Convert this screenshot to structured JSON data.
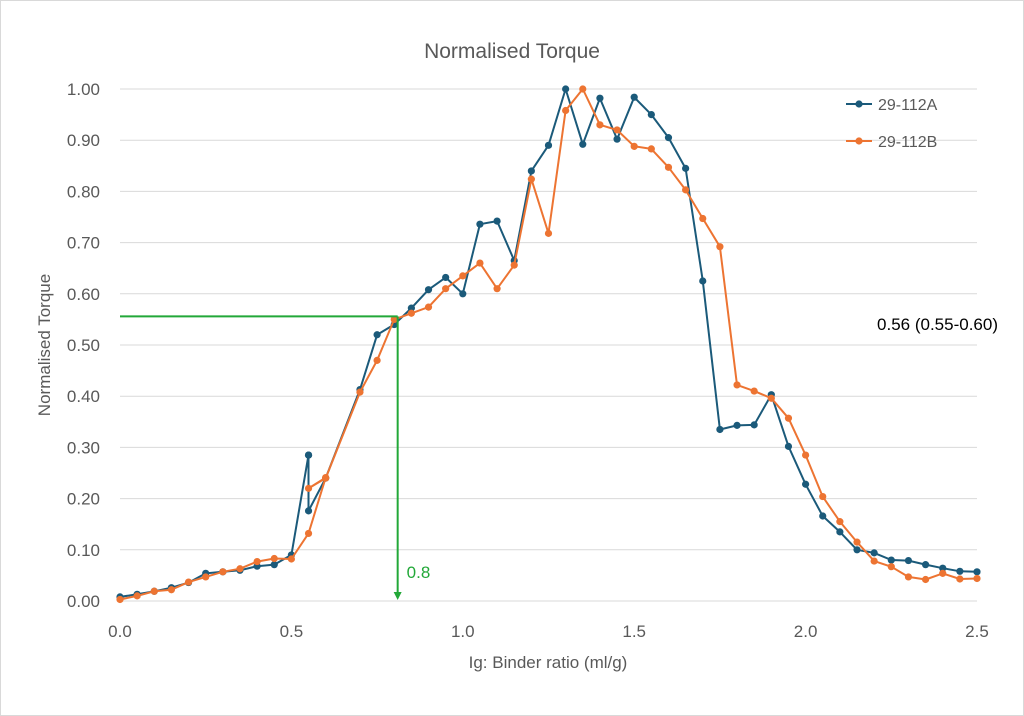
{
  "chart_data": {
    "type": "line",
    "title": "Normalised Torque",
    "xlabel": "Ig: Binder ratio (ml/g)",
    "ylabel": "Normalised Torque",
    "xlim": [
      0,
      2.5
    ],
    "ylim": [
      0,
      1.0
    ],
    "x_ticks": [
      "0.0",
      "0.5",
      "1.0",
      "1.5",
      "2.0",
      "2.5"
    ],
    "y_ticks": [
      "0.00",
      "0.10",
      "0.20",
      "0.30",
      "0.40",
      "0.50",
      "0.60",
      "0.70",
      "0.80",
      "0.90",
      "1.00"
    ],
    "grid": "horizontal",
    "legend_position": "top-right",
    "series": [
      {
        "name": "29-112A",
        "color": "#1b5a7a",
        "points": [
          [
            0.0,
            0.008
          ],
          [
            0.05,
            0.013
          ],
          [
            0.1,
            0.019
          ],
          [
            0.15,
            0.026
          ],
          [
            0.2,
            0.036
          ],
          [
            0.25,
            0.054
          ],
          [
            0.3,
            0.057
          ],
          [
            0.35,
            0.06
          ],
          [
            0.4,
            0.068
          ],
          [
            0.45,
            0.071
          ],
          [
            0.5,
            0.09
          ],
          [
            0.55,
            0.285
          ],
          [
            0.55,
            0.285
          ],
          [
            0.55,
            0.176
          ],
          [
            0.6,
            0.24
          ],
          [
            0.7,
            0.413
          ],
          [
            0.75,
            0.52
          ],
          [
            0.8,
            0.54
          ],
          [
            0.85,
            0.572
          ],
          [
            0.9,
            0.608
          ],
          [
            0.95,
            0.632
          ],
          [
            1.0,
            0.6
          ],
          [
            1.05,
            0.736
          ],
          [
            1.1,
            0.742
          ],
          [
            1.15,
            0.665
          ],
          [
            1.2,
            0.84
          ],
          [
            1.25,
            0.89
          ],
          [
            1.3,
            1.0
          ],
          [
            1.35,
            0.892
          ],
          [
            1.4,
            0.982
          ],
          [
            1.45,
            0.902
          ],
          [
            1.5,
            0.984
          ],
          [
            1.55,
            0.95
          ],
          [
            1.6,
            0.905
          ],
          [
            1.65,
            0.845
          ],
          [
            1.7,
            0.625
          ],
          [
            1.75,
            0.335
          ],
          [
            1.8,
            0.343
          ],
          [
            1.85,
            0.344
          ],
          [
            1.9,
            0.403
          ],
          [
            1.95,
            0.302
          ],
          [
            2.0,
            0.228
          ],
          [
            2.05,
            0.166
          ],
          [
            2.1,
            0.135
          ],
          [
            2.15,
            0.1
          ],
          [
            2.2,
            0.094
          ],
          [
            2.25,
            0.08
          ],
          [
            2.3,
            0.079
          ],
          [
            2.35,
            0.071
          ],
          [
            2.4,
            0.064
          ],
          [
            2.45,
            0.058
          ],
          [
            2.5,
            0.057
          ]
        ]
      },
      {
        "name": "29-112B",
        "color": "#ed7432",
        "points": [
          [
            0.0,
            0.003
          ],
          [
            0.05,
            0.01
          ],
          [
            0.1,
            0.019
          ],
          [
            0.15,
            0.022
          ],
          [
            0.2,
            0.037
          ],
          [
            0.25,
            0.047
          ],
          [
            0.3,
            0.057
          ],
          [
            0.35,
            0.063
          ],
          [
            0.4,
            0.077
          ],
          [
            0.45,
            0.083
          ],
          [
            0.5,
            0.082
          ],
          [
            0.55,
            0.132
          ],
          [
            0.6,
            0.241
          ],
          [
            0.55,
            0.22
          ],
          [
            0.6,
            0.24
          ],
          [
            0.7,
            0.408
          ],
          [
            0.75,
            0.47
          ],
          [
            0.8,
            0.55
          ],
          [
            0.85,
            0.562
          ],
          [
            0.9,
            0.574
          ],
          [
            0.95,
            0.61
          ],
          [
            1.0,
            0.635
          ],
          [
            1.05,
            0.66
          ],
          [
            1.1,
            0.61
          ],
          [
            1.15,
            0.656
          ],
          [
            1.2,
            0.824
          ],
          [
            1.25,
            0.718
          ],
          [
            1.3,
            0.958
          ],
          [
            1.35,
            1.0
          ],
          [
            1.4,
            0.93
          ],
          [
            1.45,
            0.92
          ],
          [
            1.5,
            0.888
          ],
          [
            1.55,
            0.883
          ],
          [
            1.6,
            0.847
          ],
          [
            1.65,
            0.803
          ],
          [
            1.7,
            0.747
          ],
          [
            1.75,
            0.692
          ],
          [
            1.8,
            0.422
          ],
          [
            1.85,
            0.41
          ],
          [
            1.9,
            0.396
          ],
          [
            1.95,
            0.357
          ],
          [
            2.0,
            0.285
          ],
          [
            2.05,
            0.204
          ],
          [
            2.1,
            0.155
          ],
          [
            2.15,
            0.115
          ],
          [
            2.2,
            0.078
          ],
          [
            2.25,
            0.067
          ],
          [
            2.3,
            0.047
          ],
          [
            2.35,
            0.042
          ],
          [
            2.4,
            0.054
          ],
          [
            2.45,
            0.043
          ],
          [
            2.5,
            0.044
          ]
        ]
      }
    ],
    "annotations": {
      "reference_x": 0.81,
      "reference_y": 0.556,
      "x_label": "0.8",
      "value_label": "0.56 (0.55-0.60)",
      "color": "#22a838"
    }
  }
}
